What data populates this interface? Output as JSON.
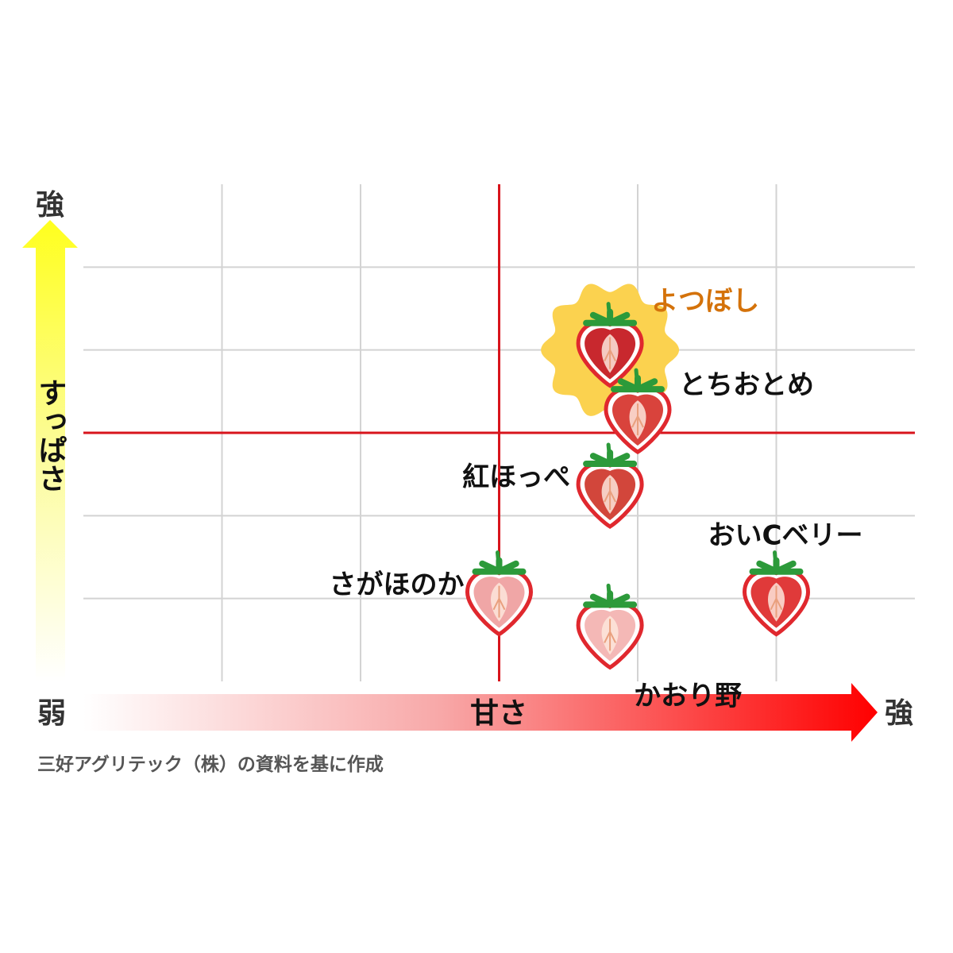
{
  "chart_data": {
    "type": "scatter",
    "title": "",
    "x_axis": {
      "label": "甘さ",
      "low_label": "弱",
      "high_label": "強",
      "range": [
        0,
        6
      ]
    },
    "y_axis": {
      "label": "すっぱさ",
      "high_label": "強",
      "range": [
        0,
        6
      ]
    },
    "grid": true,
    "reference_lines": {
      "x": 3,
      "y": 3
    },
    "points": [
      {
        "name": "よつぼし",
        "x": 3.8,
        "y": 4,
        "color": "#c8282e",
        "highlight": true,
        "label_color": "#d4720a"
      },
      {
        "name": "とちおとめ",
        "x": 4.0,
        "y": 3.2,
        "color": "#d9433c",
        "highlight": false,
        "label_color": "#111111"
      },
      {
        "name": "紅ほっぺ",
        "x": 3.8,
        "y": 2.3,
        "color": "#d2463b",
        "highlight": false,
        "label_color": "#111111"
      },
      {
        "name": "おいCベリー",
        "x": 5.0,
        "y": 1,
        "color": "#e03a3a",
        "highlight": false,
        "label_color": "#111111"
      },
      {
        "name": "さがほのか",
        "x": 3.0,
        "y": 1,
        "color": "#f0a6a6",
        "highlight": false,
        "label_color": "#111111"
      },
      {
        "name": "かおり野",
        "x": 3.8,
        "y": 0.6,
        "color": "#f4b8b6",
        "highlight": false,
        "label_color": "#111111"
      }
    ],
    "source": "三好アグリテック（株）の資料を基に作成"
  },
  "colors": {
    "grid": "#d3d3d3",
    "reference": "#d8141c",
    "highlight": "#fbd24f",
    "arrow_y_top": "#ffff1e",
    "arrow_x_end": "#ff0000"
  }
}
